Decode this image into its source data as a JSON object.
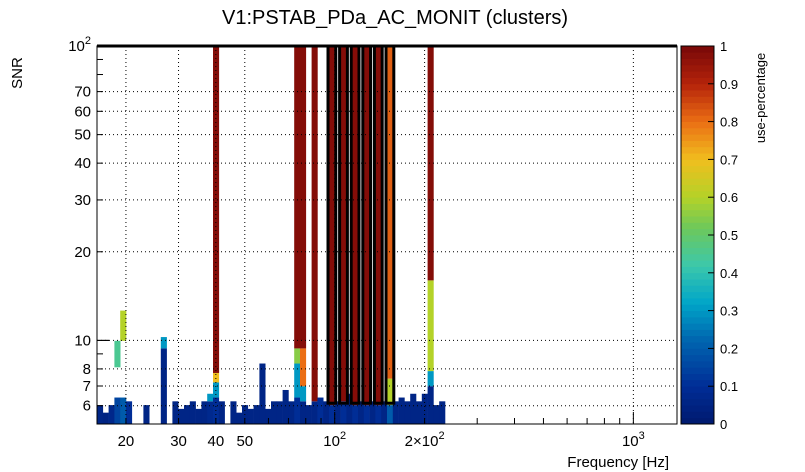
{
  "chart_data": {
    "type": "heatmap",
    "title": "V1:PSTAB_PDa_AC_MONIT (clusters)",
    "xlabel": "Frequency [Hz]",
    "ylabel": "SNR",
    "zlabel": "use-percentage",
    "x_scale": "log",
    "y_scale": "log",
    "xlim": [
      16,
      1400
    ],
    "ylim": [
      5.2,
      100
    ],
    "zlim": [
      0,
      1
    ],
    "x_ticks": [
      {
        "value": 20,
        "label": "20"
      },
      {
        "value": 30,
        "label": "30"
      },
      {
        "value": 40,
        "label": "40"
      },
      {
        "value": 50,
        "label": "50"
      },
      {
        "value": 100,
        "label": "10",
        "sup": "2"
      },
      {
        "value": 200,
        "label": "2×10",
        "sup": "2"
      },
      {
        "value": 1000,
        "label": "10",
        "sup": "3"
      }
    ],
    "y_ticks": [
      {
        "value": 6,
        "label": "6"
      },
      {
        "value": 7,
        "label": "7"
      },
      {
        "value": 8,
        "label": "8"
      },
      {
        "value": 10,
        "label": "10"
      },
      {
        "value": 20,
        "label": "20"
      },
      {
        "value": 30,
        "label": "30"
      },
      {
        "value": 40,
        "label": "40"
      },
      {
        "value": 50,
        "label": "50"
      },
      {
        "value": 60,
        "label": "60"
      },
      {
        "value": 70,
        "label": "70"
      },
      {
        "value": 100,
        "label": "10",
        "sup": "2"
      }
    ],
    "z_ticks": [
      "0",
      "0.1",
      "0.2",
      "0.3",
      "0.4",
      "0.5",
      "0.6",
      "0.7",
      "0.8",
      "0.9",
      "1"
    ],
    "x_bin_count": 100,
    "y_bin_count": 100,
    "grid": true,
    "columns": [
      {
        "bin": 0,
        "segments": [
          [
            0,
            0.05,
            0.06
          ]
        ]
      },
      {
        "bin": 1,
        "segments": [
          [
            0,
            0.03,
            0.05
          ]
        ]
      },
      {
        "bin": 2,
        "segments": [
          [
            0,
            0.05,
            0.07
          ]
        ]
      },
      {
        "bin": 3,
        "segments": [
          [
            0,
            0.07,
            0.15
          ],
          [
            0.15,
            0.22,
            0.45
          ]
        ]
      },
      {
        "bin": 4,
        "segments": [
          [
            0,
            0.07,
            0.2
          ],
          [
            0.22,
            0.3,
            0.6
          ]
        ]
      },
      {
        "bin": 5,
        "segments": [
          [
            0,
            0.06,
            0.1
          ]
        ]
      },
      {
        "bin": 8,
        "segments": [
          [
            0,
            0.05,
            0.06
          ]
        ]
      },
      {
        "bin": 11,
        "segments": [
          [
            0,
            0.2,
            0.06
          ],
          [
            0.2,
            0.23,
            0.3
          ]
        ]
      },
      {
        "bin": 13,
        "segments": [
          [
            0,
            0.06,
            0.06
          ]
        ]
      },
      {
        "bin": 14,
        "segments": [
          [
            0,
            0.04,
            0.06
          ]
        ]
      },
      {
        "bin": 15,
        "segments": [
          [
            0,
            0.05,
            0.06
          ]
        ]
      },
      {
        "bin": 16,
        "segments": [
          [
            0,
            0.06,
            0.06
          ]
        ]
      },
      {
        "bin": 17,
        "segments": [
          [
            0,
            0.04,
            0.06
          ]
        ]
      },
      {
        "bin": 18,
        "segments": [
          [
            0,
            0.06,
            0.06
          ]
        ]
      },
      {
        "bin": 19,
        "segments": [
          [
            0,
            0.06,
            0.08
          ],
          [
            0.06,
            0.08,
            0.3
          ]
        ]
      },
      {
        "bin": 20,
        "segments": [
          [
            0,
            0.07,
            0.1
          ],
          [
            0.07,
            0.11,
            0.3
          ],
          [
            0.11,
            0.135,
            0.7
          ],
          [
            0.135,
            1.0,
            0.98
          ]
        ]
      },
      {
        "bin": 21,
        "segments": [
          [
            0,
            0.06,
            0.06
          ]
        ]
      },
      {
        "bin": 23,
        "segments": [
          [
            0,
            0.06,
            0.06
          ]
        ]
      },
      {
        "bin": 24,
        "segments": [
          [
            0,
            0.03,
            0.06
          ]
        ]
      },
      {
        "bin": 25,
        "segments": [
          [
            0,
            0.05,
            0.06
          ]
        ]
      },
      {
        "bin": 26,
        "segments": [
          [
            0,
            0.04,
            0.06
          ]
        ]
      },
      {
        "bin": 27,
        "segments": [
          [
            0,
            0.05,
            0.06
          ]
        ]
      },
      {
        "bin": 28,
        "segments": [
          [
            0,
            0.16,
            0.06
          ]
        ]
      },
      {
        "bin": 29,
        "segments": [
          [
            0,
            0.04,
            0.06
          ]
        ]
      },
      {
        "bin": 30,
        "segments": [
          [
            0,
            0.06,
            0.06
          ]
        ]
      },
      {
        "bin": 31,
        "segments": [
          [
            0,
            0.06,
            0.06
          ]
        ]
      },
      {
        "bin": 32,
        "segments": [
          [
            0,
            0.09,
            0.06
          ]
        ]
      },
      {
        "bin": 33,
        "segments": [
          [
            0,
            0.06,
            0.06
          ]
        ]
      },
      {
        "bin": 34,
        "segments": [
          [
            0,
            0.07,
            0.1
          ],
          [
            0.07,
            0.16,
            0.3
          ],
          [
            0.16,
            0.2,
            0.55
          ],
          [
            0.2,
            1.0,
            0.98
          ]
        ]
      },
      {
        "bin": 35,
        "segments": [
          [
            0,
            0.06,
            0.06
          ],
          [
            0.06,
            0.1,
            0.3
          ],
          [
            0.1,
            0.2,
            0.8
          ],
          [
            0.2,
            1.0,
            0.98
          ]
        ]
      },
      {
        "bin": 36,
        "segments": [
          [
            0,
            0.05,
            0.06
          ]
        ]
      },
      {
        "bin": 37,
        "segments": [
          [
            0,
            0.06,
            0.06
          ],
          [
            0.06,
            1.0,
            0.98
          ]
        ]
      },
      {
        "bin": 38,
        "segments": [
          [
            0,
            0.07,
            0.1
          ]
        ]
      },
      {
        "bin": 39,
        "segments": [
          [
            0,
            0.06,
            0.06
          ]
        ]
      },
      {
        "bin": 40,
        "segments": [
          [
            0,
            0.05,
            0.1
          ],
          [
            0.05,
            1.0,
            0.98
          ]
        ]
      },
      {
        "bin": 41,
        "segments": [
          [
            0,
            0.06,
            0.06
          ]
        ]
      },
      {
        "bin": 42,
        "segments": [
          [
            0,
            0.06,
            0.1
          ],
          [
            0.06,
            1.0,
            0.98
          ]
        ]
      },
      {
        "bin": 43,
        "segments": [
          [
            0,
            0.08,
            0.06
          ]
        ]
      },
      {
        "bin": 44,
        "segments": [
          [
            0,
            0.05,
            0.1
          ],
          [
            0.05,
            1.0,
            0.98
          ]
        ]
      },
      {
        "bin": 45,
        "segments": [
          [
            0,
            0.06,
            0.06
          ]
        ]
      },
      {
        "bin": 46,
        "segments": [
          [
            0,
            0.05,
            0.1
          ],
          [
            0.05,
            1.0,
            0.98
          ]
        ]
      },
      {
        "bin": 47,
        "segments": [
          [
            0,
            0.06,
            0.06
          ]
        ]
      },
      {
        "bin": 48,
        "segments": [
          [
            0,
            0.05,
            0.1
          ],
          [
            0.05,
            1.0,
            0.98
          ]
        ]
      },
      {
        "bin": 49,
        "segments": [
          [
            0,
            0.06,
            0.06
          ]
        ]
      },
      {
        "bin": 50,
        "segments": [
          [
            0,
            0.05,
            0.2
          ],
          [
            0.05,
            0.12,
            0.6
          ],
          [
            0.12,
            1.0,
            0.82
          ]
        ]
      },
      {
        "bin": 51,
        "segments": [
          [
            0,
            0.06,
            0.06
          ]
        ]
      },
      {
        "bin": 52,
        "segments": [
          [
            0,
            0.07,
            0.06
          ]
        ]
      },
      {
        "bin": 53,
        "segments": [
          [
            0,
            0.06,
            0.06
          ]
        ]
      },
      {
        "bin": 54,
        "segments": [
          [
            0,
            0.08,
            0.06
          ]
        ]
      },
      {
        "bin": 55,
        "segments": [
          [
            0,
            0.06,
            0.06
          ]
        ]
      },
      {
        "bin": 56,
        "segments": [
          [
            0,
            0.08,
            0.06
          ]
        ]
      },
      {
        "bin": 57,
        "segments": [
          [
            0,
            0.1,
            0.06
          ],
          [
            0.1,
            0.14,
            0.3
          ],
          [
            0.14,
            0.38,
            0.6
          ],
          [
            0.38,
            1.0,
            0.98
          ]
        ]
      },
      {
        "bin": 58,
        "segments": [
          [
            0,
            0.05,
            0.06
          ]
        ]
      },
      {
        "bin": 59,
        "segments": [
          [
            0,
            0.06,
            0.06
          ]
        ]
      }
    ],
    "outlined_bins": [
      40,
      42,
      44,
      46,
      48,
      50
    ]
  }
}
